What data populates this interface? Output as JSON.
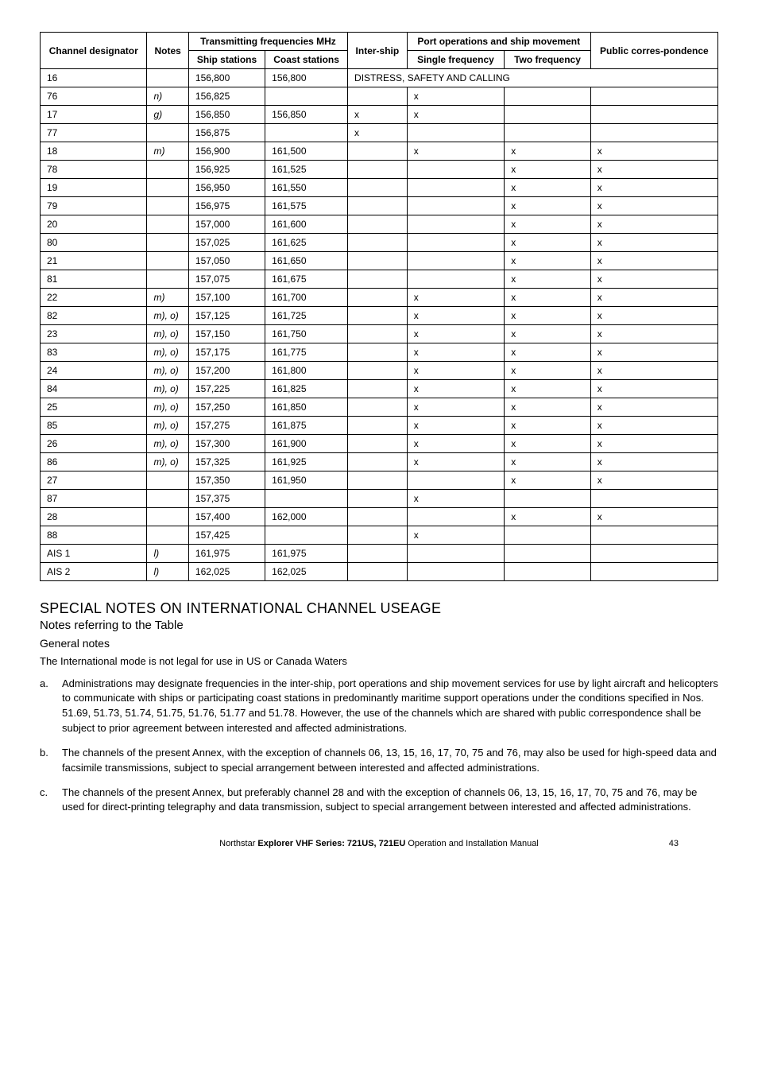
{
  "table": {
    "headers": {
      "channel": "Channel designator",
      "notes": "Notes",
      "transmitting": "Transmitting frequencies MHz",
      "ship_stations": "Ship stations",
      "coast_stations": "Coast stations",
      "intership": "Inter-ship",
      "port_ops": "Port operations and ship movement",
      "single_freq": "Single frequency",
      "two_freq": "Two frequency",
      "public": "Public corres-pondence"
    },
    "distress_label": "DISTRESS, SAFETY AND CALLING",
    "rows": [
      {
        "ch": "16",
        "notes": "",
        "ship": "156,800",
        "coast": "156,800",
        "inter": "",
        "single": "",
        "two": "",
        "pub": "",
        "distress": true
      },
      {
        "ch": "76",
        "notes": "n)",
        "ship": "156,825",
        "coast": "",
        "inter": "",
        "single": "x",
        "two": "",
        "pub": ""
      },
      {
        "ch": "17",
        "notes": "g)",
        "ship": "156,850",
        "coast": "156,850",
        "inter": "x",
        "single": "x",
        "two": "",
        "pub": ""
      },
      {
        "ch": "77",
        "notes": "",
        "ship": "156,875",
        "coast": "",
        "inter": "x",
        "single": "",
        "two": "",
        "pub": ""
      },
      {
        "ch": "18",
        "notes": "m)",
        "ship": "156,900",
        "coast": "161,500",
        "inter": "",
        "single": "x",
        "two": "x",
        "pub": "x"
      },
      {
        "ch": "78",
        "notes": "",
        "ship": "156,925",
        "coast": "161,525",
        "inter": "",
        "single": "",
        "two": "x",
        "pub": "x"
      },
      {
        "ch": "19",
        "notes": "",
        "ship": "156,950",
        "coast": "161,550",
        "inter": "",
        "single": "",
        "two": "x",
        "pub": "x"
      },
      {
        "ch": "79",
        "notes": "",
        "ship": "156,975",
        "coast": "161,575",
        "inter": "",
        "single": "",
        "two": "x",
        "pub": "x"
      },
      {
        "ch": "20",
        "notes": "",
        "ship": "157,000",
        "coast": "161,600",
        "inter": "",
        "single": "",
        "two": "x",
        "pub": "x"
      },
      {
        "ch": "80",
        "notes": "",
        "ship": "157,025",
        "coast": "161,625",
        "inter": "",
        "single": "",
        "two": "x",
        "pub": "x"
      },
      {
        "ch": "21",
        "notes": "",
        "ship": "157,050",
        "coast": "161,650",
        "inter": "",
        "single": "",
        "two": "x",
        "pub": "x"
      },
      {
        "ch": "81",
        "notes": "",
        "ship": "157,075",
        "coast": "161,675",
        "inter": "",
        "single": "",
        "two": "x",
        "pub": "x"
      },
      {
        "ch": "22",
        "notes": "m)",
        "ship": "157,100",
        "coast": "161,700",
        "inter": "",
        "single": "x",
        "two": "x",
        "pub": "x"
      },
      {
        "ch": "82",
        "notes": "m), o)",
        "ship": "157,125",
        "coast": "161,725",
        "inter": "",
        "single": "x",
        "two": "x",
        "pub": "x"
      },
      {
        "ch": "23",
        "notes": "m), o)",
        "ship": "157,150",
        "coast": "161,750",
        "inter": "",
        "single": "x",
        "two": "x",
        "pub": "x"
      },
      {
        "ch": "83",
        "notes": "m), o)",
        "ship": "157,175",
        "coast": "161,775",
        "inter": "",
        "single": "x",
        "two": "x",
        "pub": "x"
      },
      {
        "ch": "24",
        "notes": "m), o)",
        "ship": "157,200",
        "coast": "161,800",
        "inter": "",
        "single": "x",
        "two": "x",
        "pub": "x"
      },
      {
        "ch": "84",
        "notes": "m), o)",
        "ship": "157,225",
        "coast": "161,825",
        "inter": "",
        "single": "x",
        "two": "x",
        "pub": "x"
      },
      {
        "ch": "25",
        "notes": "m), o)",
        "ship": "157,250",
        "coast": "161,850",
        "inter": "",
        "single": "x",
        "two": "x",
        "pub": "x"
      },
      {
        "ch": "85",
        "notes": "m), o)",
        "ship": "157,275",
        "coast": "161,875",
        "inter": "",
        "single": "x",
        "two": "x",
        "pub": "x"
      },
      {
        "ch": "26",
        "notes": "m), o)",
        "ship": "157,300",
        "coast": "161,900",
        "inter": "",
        "single": "x",
        "two": "x",
        "pub": "x"
      },
      {
        "ch": "86",
        "notes": "m), o)",
        "ship": "157,325",
        "coast": "161,925",
        "inter": "",
        "single": "x",
        "two": "x",
        "pub": "x"
      },
      {
        "ch": "27",
        "notes": "",
        "ship": "157,350",
        "coast": "161,950",
        "inter": "",
        "single": "",
        "two": "x",
        "pub": "x"
      },
      {
        "ch": "87",
        "notes": "",
        "ship": "157,375",
        "coast": "",
        "inter": "",
        "single": "x",
        "two": "",
        "pub": ""
      },
      {
        "ch": "28",
        "notes": "",
        "ship": "157,400",
        "coast": "162,000",
        "inter": "",
        "single": "",
        "two": "x",
        "pub": "x"
      },
      {
        "ch": "88",
        "notes": "",
        "ship": "157,425",
        "coast": "",
        "inter": "",
        "single": "x",
        "two": "",
        "pub": ""
      },
      {
        "ch": "AIS 1",
        "notes": "l)",
        "ship": "161,975",
        "coast": "161,975",
        "inter": "",
        "single": "",
        "two": "",
        "pub": ""
      },
      {
        "ch": "AIS 2",
        "notes": "l)",
        "ship": "162,025",
        "coast": "162,025",
        "inter": "",
        "single": "",
        "two": "",
        "pub": ""
      }
    ]
  },
  "sections": {
    "special_title": "SPECIAL NOTES ON INTERNATIONAL CHANNEL USEAGE",
    "notes_sub": "Notes referring to the Table",
    "general_sub": "General notes",
    "intl_text": "The International mode is not legal for use in US or Canada Waters",
    "items": [
      {
        "m": "a.",
        "t": "Administrations may designate frequencies in the inter-ship, port operations and ship movement services for use by light aircraft and helicopters to communicate with ships or participating coast stations in predominantly maritime support operations under the conditions specified in Nos. 51.69, 51.73, 51.74, 51.75, 51.76, 51.77 and 51.78. However, the use of the channels which are shared with public correspondence shall be subject to prior agreement between interested and affected administrations."
      },
      {
        "m": "b.",
        "t": "The channels of the present Annex, with the exception of channels 06, 13, 15, 16, 17, 70, 75 and 76, may also be used for high-speed data and facsimile transmissions, subject to special arrangement between interested and affected administrations."
      },
      {
        "m": "c.",
        "t": "The channels of the present Annex, but preferably channel 28 and with the exception of channels 06, 13, 15, 16, 17, 70, 75 and 76, may be used for direct-printing telegraphy and data transmission, subject to special arrangement between interested and affected administrations."
      }
    ]
  },
  "footer": {
    "prefix": "Northstar ",
    "bold": "Explorer VHF Series: 721US, 721EU",
    "suffix": " Operation and Installation Manual",
    "page": "43"
  }
}
